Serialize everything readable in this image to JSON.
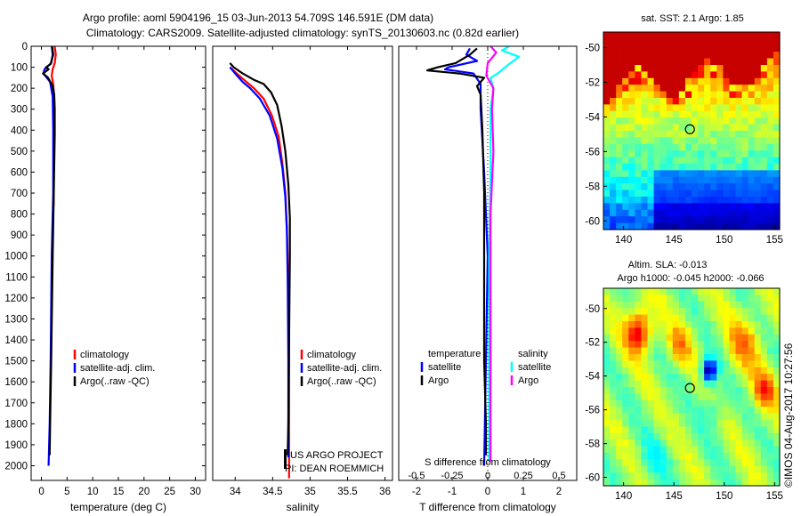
{
  "header": {
    "line1": "Argo profile: aoml 5904196_15 03-Jun-2013 54.709S 146.591E (DM data)",
    "line2": "Climatology: CARS2009. Satellite-adjusted climatology: synTS_20130603.nc (0.82d earlier)"
  },
  "colors": {
    "climatology": "#ff0000",
    "satellite": "#0000ff",
    "argo": "#000000",
    "sal_sat": "#00ffff",
    "sal_argo": "#ff00ff"
  },
  "chart_data": [
    {
      "type": "line",
      "id": "temperature",
      "xlabel": "temperature (deg C)",
      "ylabel": "",
      "xlim": [
        -2,
        32
      ],
      "ylim": [
        2070,
        0
      ],
      "xticks": [
        0,
        5,
        10,
        15,
        20,
        25,
        30
      ],
      "yticks": [
        0,
        100,
        200,
        300,
        400,
        500,
        600,
        700,
        800,
        900,
        1000,
        1100,
        1200,
        1300,
        1400,
        1500,
        1600,
        1700,
        1800,
        1900,
        2000
      ],
      "legend": [
        "climatology",
        "satellite-adj. clim.",
        "Argo(..raw -QC)"
      ],
      "series": [
        {
          "name": "climatology",
          "color": "#ff0000",
          "points": [
            [
              2.6,
              0
            ],
            [
              2.8,
              40
            ],
            [
              2.6,
              80
            ],
            [
              2.2,
              110
            ],
            [
              2.0,
              140
            ],
            [
              2.3,
              180
            ],
            [
              2.5,
              250
            ],
            [
              2.5,
              400
            ],
            [
              2.4,
              600
            ],
            [
              2.4,
              760
            ]
          ]
        },
        {
          "name": "satellite-adj. clim.",
          "color": "#0000ff",
          "points": [
            [
              2.0,
              0
            ],
            [
              2.2,
              40
            ],
            [
              1.9,
              80
            ],
            [
              0.6,
              110
            ],
            [
              0.4,
              130
            ],
            [
              1.7,
              170
            ],
            [
              2.2,
              240
            ],
            [
              2.3,
              400
            ],
            [
              2.3,
              700
            ],
            [
              2.0,
              1000
            ],
            [
              1.8,
              1500
            ],
            [
              1.6,
              1800
            ],
            [
              1.4,
              2000
            ]
          ]
        },
        {
          "name": "Argo(..raw -QC)",
          "color": "#000000",
          "points": [
            [
              2.1,
              0
            ],
            [
              2.3,
              40
            ],
            [
              1.8,
              85
            ],
            [
              0.9,
              100
            ],
            [
              1.4,
              110
            ],
            [
              0.3,
              130
            ],
            [
              1.3,
              150
            ],
            [
              2.2,
              190
            ],
            [
              2.5,
              230
            ],
            [
              2.6,
              300
            ],
            [
              2.6,
              420
            ],
            [
              2.4,
              700
            ],
            [
              2.2,
              1000
            ],
            [
              1.9,
              1500
            ],
            [
              1.7,
              1800
            ],
            [
              1.6,
              1950
            ]
          ]
        }
      ]
    },
    {
      "type": "line",
      "id": "salinity",
      "xlabel": "salinity",
      "xlim": [
        33.7,
        36.1
      ],
      "ylim": [
        2070,
        0
      ],
      "xticks": [
        34,
        34.5,
        35,
        35.5,
        36
      ],
      "xtick_labels": [
        "34",
        "34.5",
        "35",
        "35.5",
        "36"
      ],
      "legend": [
        "climatology",
        "satellite-adj. clim.",
        "Argo(..raw -QC)"
      ],
      "annotation": [
        "US ARGO PROJECT",
        "PI: DEAN ROEMMICH"
      ],
      "series": [
        {
          "name": "climatology",
          "color": "#ff0000",
          "points": [
            [
              33.93,
              100
            ],
            [
              34.02,
              130
            ],
            [
              34.15,
              170
            ],
            [
              34.25,
              200
            ],
            [
              34.38,
              250
            ],
            [
              34.49,
              330
            ],
            [
              34.58,
              430
            ],
            [
              34.63,
              560
            ],
            [
              34.67,
              700
            ],
            [
              34.69,
              860
            ],
            [
              34.7,
              1000
            ],
            [
              34.72,
              1400
            ],
            [
              34.72,
              2000
            ],
            [
              34.72,
              2060
            ]
          ]
        },
        {
          "name": "satellite-adj. clim.",
          "color": "#0000ff",
          "points": [
            [
              33.93,
              100
            ],
            [
              34.0,
              130
            ],
            [
              34.1,
              170
            ],
            [
              34.2,
              200
            ],
            [
              34.33,
              250
            ],
            [
              34.46,
              330
            ],
            [
              34.56,
              440
            ],
            [
              34.63,
              580
            ],
            [
              34.67,
              720
            ],
            [
              34.69,
              880
            ],
            [
              34.7,
              1100
            ],
            [
              34.71,
              1500
            ],
            [
              34.71,
              1960
            ]
          ]
        },
        {
          "name": "Argo(..raw -QC)",
          "color": "#000000",
          "points": [
            [
              33.93,
              80
            ],
            [
              33.98,
              100
            ],
            [
              34.1,
              130
            ],
            [
              34.25,
              160
            ],
            [
              34.38,
              180
            ],
            [
              34.48,
              220
            ],
            [
              34.56,
              280
            ],
            [
              34.62,
              380
            ],
            [
              34.67,
              500
            ],
            [
              34.71,
              660
            ],
            [
              34.73,
              820
            ],
            [
              34.73,
              1000
            ],
            [
              34.72,
              1400
            ],
            [
              34.71,
              1800
            ],
            [
              34.7,
              1950
            ]
          ]
        }
      ]
    },
    {
      "type": "line",
      "id": "differences",
      "xlabel": "T difference from climatology",
      "top_label": "S difference from climatology",
      "xlim": [
        -2.5,
        2.5
      ],
      "ylim": [
        2070,
        0
      ],
      "xticks": [
        -2,
        -1,
        0,
        1,
        2
      ],
      "xtick_labels": [
        "-2",
        "-1",
        "0",
        "1",
        "2"
      ],
      "s_xticks": [
        -0.5,
        -0.25,
        0,
        0.25,
        0.5
      ],
      "s_xtick_labels": [
        "-0.5",
        "-0.25",
        "0",
        "0.25",
        "0.5"
      ],
      "legend_titles": [
        "temperature",
        "salinity"
      ],
      "legend_t": [
        "satellite",
        "Argo"
      ],
      "legend_s": [
        "satellite",
        "Argo"
      ],
      "series": [
        {
          "name": "T satellite",
          "color": "#0000ff",
          "points": [
            [
              -0.5,
              10
            ],
            [
              -0.6,
              40
            ],
            [
              -0.3,
              70
            ],
            [
              -1.1,
              100
            ],
            [
              -1.2,
              110
            ],
            [
              -0.4,
              130
            ],
            [
              -0.2,
              180
            ],
            [
              -0.2,
              300
            ],
            [
              -0.1,
              600
            ],
            [
              0,
              1000
            ],
            [
              -0.1,
              2000
            ]
          ]
        },
        {
          "name": "T Argo",
          "color": "#000000",
          "points": [
            [
              -0.3,
              10
            ],
            [
              -0.5,
              40
            ],
            [
              -0.9,
              80
            ],
            [
              -1.4,
              100
            ],
            [
              -1.7,
              115
            ],
            [
              -0.8,
              130
            ],
            [
              -0.1,
              150
            ],
            [
              -0.2,
              170
            ],
            [
              -0.3,
              190
            ],
            [
              -0.2,
              230
            ],
            [
              -0.15,
              400
            ],
            [
              -0.1,
              700
            ],
            [
              -0.1,
              1000
            ],
            [
              -0.1,
              1500
            ],
            [
              -0.05,
              1800
            ],
            [
              -0.05,
              1950
            ]
          ]
        },
        {
          "name": "S satellite",
          "color": "#00ffff",
          "points": [
            [
              0.15,
              0
            ],
            [
              0.1,
              20
            ],
            [
              0.22,
              50
            ],
            [
              0.14,
              90
            ],
            [
              0.07,
              130
            ],
            [
              0.02,
              150
            ],
            [
              0.04,
              200
            ],
            [
              0.02,
              300
            ],
            [
              0.02,
              600
            ],
            [
              0.01,
              1000
            ],
            [
              0.01,
              1500
            ],
            [
              0.01,
              1980
            ]
          ]
        },
        {
          "name": "S Argo",
          "color": "#ff00ff",
          "points": [
            [
              0.02,
              0
            ],
            [
              0.06,
              30
            ],
            [
              0.0,
              80
            ],
            [
              -0.01,
              140
            ],
            [
              0.04,
              200
            ],
            [
              0.03,
              300
            ],
            [
              0.04,
              500
            ],
            [
              0.02,
              800
            ],
            [
              0.02,
              1100
            ],
            [
              0.02,
              1500
            ],
            [
              0.02,
              1800
            ],
            [
              0.02,
              1980
            ]
          ]
        }
      ]
    },
    {
      "type": "heatmap",
      "id": "sst_map",
      "title": "sat. SST: 2.1  Argo: 1.85",
      "xticks": [
        140,
        145,
        150,
        155
      ],
      "yticks": [
        -50,
        -52,
        -54,
        -56,
        -58,
        -60
      ],
      "xlim": [
        138,
        155.5
      ],
      "ylim": [
        -60.5,
        -49.1
      ],
      "marker": [
        146.59,
        -54.71
      ]
    },
    {
      "type": "heatmap",
      "id": "sla_map",
      "title1": "Altim. SLA: -0.013",
      "title2": "Argo h1000: -0.045  h2000: -0.066",
      "xticks": [
        140,
        145,
        150,
        155
      ],
      "yticks": [
        -50,
        -52,
        -54,
        -56,
        -58,
        -60
      ],
      "xlim": [
        138,
        155.5
      ],
      "ylim": [
        -60.5,
        -48.8
      ],
      "marker": [
        146.59,
        -54.71
      ]
    }
  ],
  "footer": {
    "stamp": "©IMOS 04-Aug-2017 10:27:56"
  }
}
